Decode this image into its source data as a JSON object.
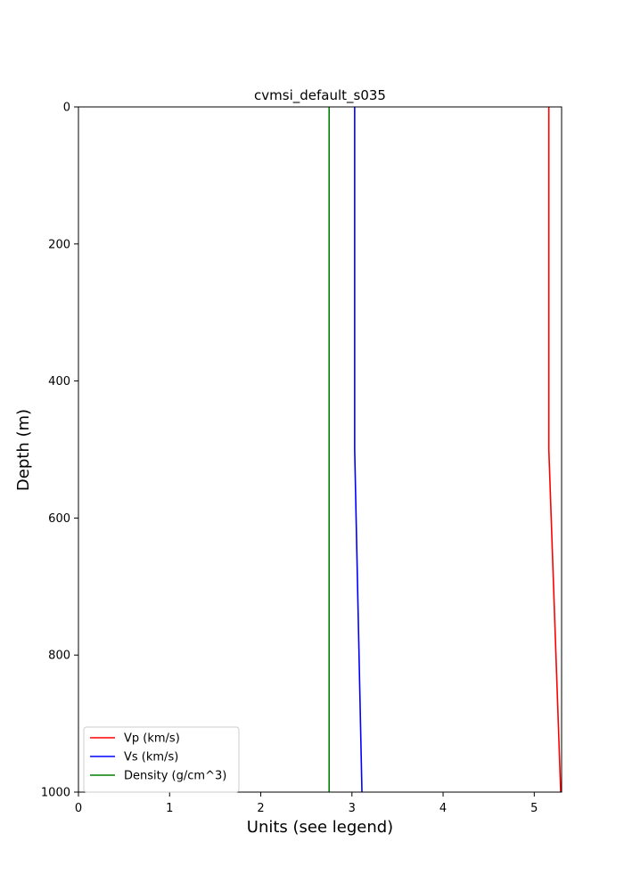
{
  "chart_data": {
    "type": "line",
    "title": "cvmsi_default_s035",
    "xlabel": "Units (see legend)",
    "ylabel": "Depth (m)",
    "xlim": [
      0,
      5.3
    ],
    "ylim": [
      1000,
      0
    ],
    "y_inverted": true,
    "x_ticks": [
      0,
      1,
      2,
      3,
      4,
      5
    ],
    "y_ticks": [
      0,
      200,
      400,
      600,
      800,
      1000
    ],
    "grid": false,
    "legend_position": "lower-left",
    "series": [
      {
        "name": "Vp (km/s)",
        "color": "#ff0000",
        "points": [
          [
            5.16,
            0
          ],
          [
            5.16,
            500
          ],
          [
            5.29,
            1000
          ]
        ]
      },
      {
        "name": "Vs (km/s)",
        "color": "#0000ff",
        "points": [
          [
            3.03,
            0
          ],
          [
            3.03,
            500
          ],
          [
            3.11,
            1000
          ]
        ]
      },
      {
        "name": "Density (g/cm^3)",
        "color": "#008000",
        "points": [
          [
            2.75,
            0
          ],
          [
            2.75,
            1000
          ]
        ]
      }
    ]
  }
}
